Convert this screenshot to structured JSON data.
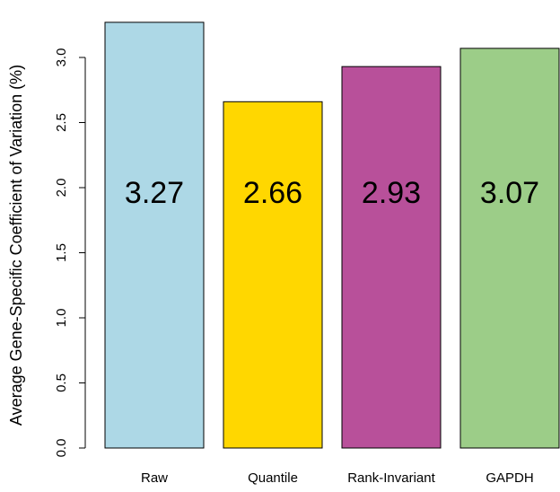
{
  "chart_data": {
    "type": "bar",
    "title": "",
    "xlabel": "",
    "ylabel": "Average Gene-Specific Coefficient of Variation (%)",
    "categories": [
      "Raw",
      "Quantile",
      "Rank-Invariant",
      "GAPDH"
    ],
    "values": [
      3.27,
      2.66,
      2.93,
      3.07
    ],
    "value_labels": [
      "3.27",
      "2.66",
      "2.93",
      "3.07"
    ],
    "colors": [
      "#add8e6",
      "#ffd700",
      "#b8509a",
      "#9ccd88"
    ],
    "ylim": [
      0,
      3.0
    ],
    "yticks": [
      0.0,
      0.5,
      1.0,
      1.5,
      2.0,
      2.5,
      3.0
    ],
    "ytick_labels": [
      "0.0",
      "0.5",
      "1.0",
      "1.5",
      "2.0",
      "2.5",
      "3.0"
    ],
    "grid": false,
    "legend": "none"
  }
}
